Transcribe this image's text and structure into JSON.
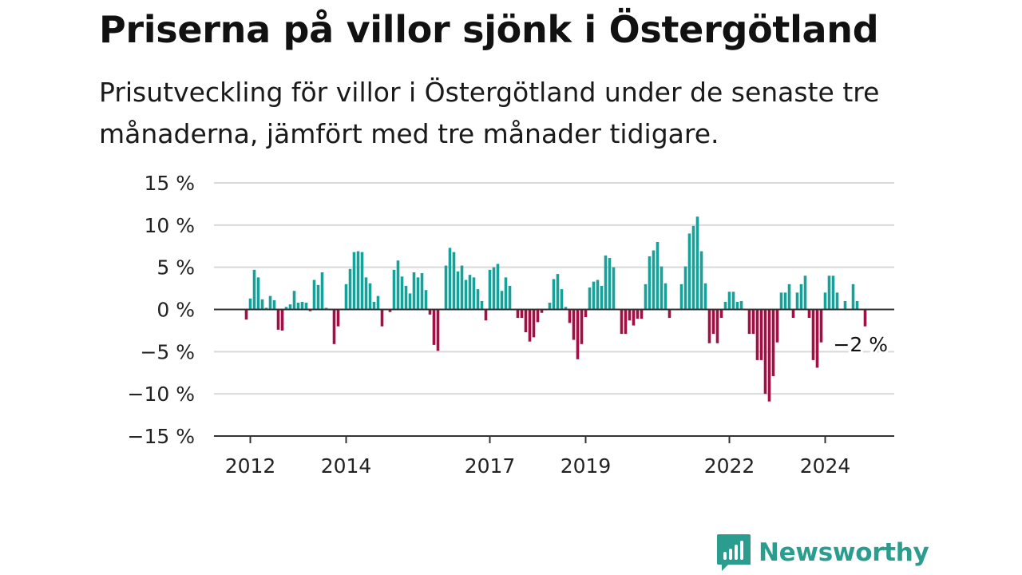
{
  "title": "Priserna på villor sjönk i Östergötland",
  "subtitle": "Prisutveckling för villor i Östergötland under de senaste tre månaderna, jämfört med tre månader tidigare.",
  "brand": "Newsworthy",
  "colors": {
    "positive": "#16a29a",
    "negative": "#a10f45",
    "grid": "#d9d9d9",
    "axis": "#333333",
    "brand": "#2a9d8f"
  },
  "chart_data": {
    "type": "bar",
    "unit": "%",
    "ylim": [
      -15,
      15
    ],
    "y_ticks": [
      15,
      10,
      5,
      0,
      -5,
      -10,
      -15
    ],
    "y_tick_labels": [
      "15 %",
      "10 %",
      "5 %",
      "0 %",
      "−5 %",
      "−10 %",
      "−15 %"
    ],
    "x_ticks": [
      {
        "index": 1,
        "label": "2012"
      },
      {
        "index": 25,
        "label": "2014"
      },
      {
        "index": 61,
        "label": "2017"
      },
      {
        "index": 85,
        "label": "2019"
      },
      {
        "index": 121,
        "label": "2022"
      },
      {
        "index": 145,
        "label": "2024"
      }
    ],
    "period_start": "2011-12",
    "period_end": "2024-11",
    "frequency": "monthly",
    "grid": true,
    "last_value_label": "−2 %",
    "values": [
      -1.2,
      1.3,
      4.7,
      3.8,
      1.2,
      0.2,
      1.6,
      1.1,
      -2.4,
      -2.5,
      0.3,
      0.6,
      2.2,
      0.8,
      0.9,
      0.8,
      -0.2,
      3.5,
      2.9,
      4.4,
      0.2,
      -0.1,
      -4.1,
      -2.0,
      0.0,
      3.0,
      4.8,
      6.8,
      6.9,
      6.8,
      3.8,
      3.1,
      0.9,
      1.6,
      -2.0,
      0.0,
      -0.3,
      4.7,
      5.8,
      3.9,
      2.8,
      1.9,
      4.4,
      3.8,
      4.3,
      2.3,
      -0.6,
      -4.2,
      -4.9,
      0.0,
      5.2,
      7.3,
      6.8,
      4.5,
      5.2,
      3.5,
      4.1,
      3.8,
      2.4,
      1.0,
      -1.3,
      4.7,
      5.0,
      5.4,
      2.2,
      3.8,
      2.8,
      -0.1,
      -1.0,
      -1.0,
      -2.7,
      -3.8,
      -3.3,
      -1.5,
      -0.4,
      -0.1,
      0.8,
      3.6,
      4.2,
      2.4,
      0.3,
      -1.6,
      -3.6,
      -5.9,
      -4.1,
      -0.9,
      2.6,
      3.3,
      3.5,
      2.8,
      6.4,
      6.1,
      5.0,
      0.0,
      -2.9,
      -2.9,
      -1.3,
      -1.9,
      -1.1,
      -1.1,
      3.0,
      6.3,
      7.0,
      8.0,
      5.1,
      3.1,
      -1.0,
      0.0,
      0.0,
      3.0,
      5.1,
      9.0,
      9.9,
      11.0,
      6.9,
      3.1,
      -4.0,
      -2.9,
      -4.0,
      -1.0,
      0.9,
      2.1,
      2.1,
      0.9,
      1.0,
      -0.1,
      -2.9,
      -2.9,
      -6.0,
      -6.0,
      -10.0,
      -10.9,
      -7.9,
      -3.9,
      2.0,
      2.0,
      3.0,
      -1.0,
      2.0,
      3.0,
      4.0,
      -1.0,
      -6.0,
      -6.9,
      -3.9,
      2.0,
      4.0,
      4.0,
      2.0,
      0.0,
      1.0,
      0.0,
      3.0,
      1.0,
      0.0,
      -2.0
    ]
  }
}
